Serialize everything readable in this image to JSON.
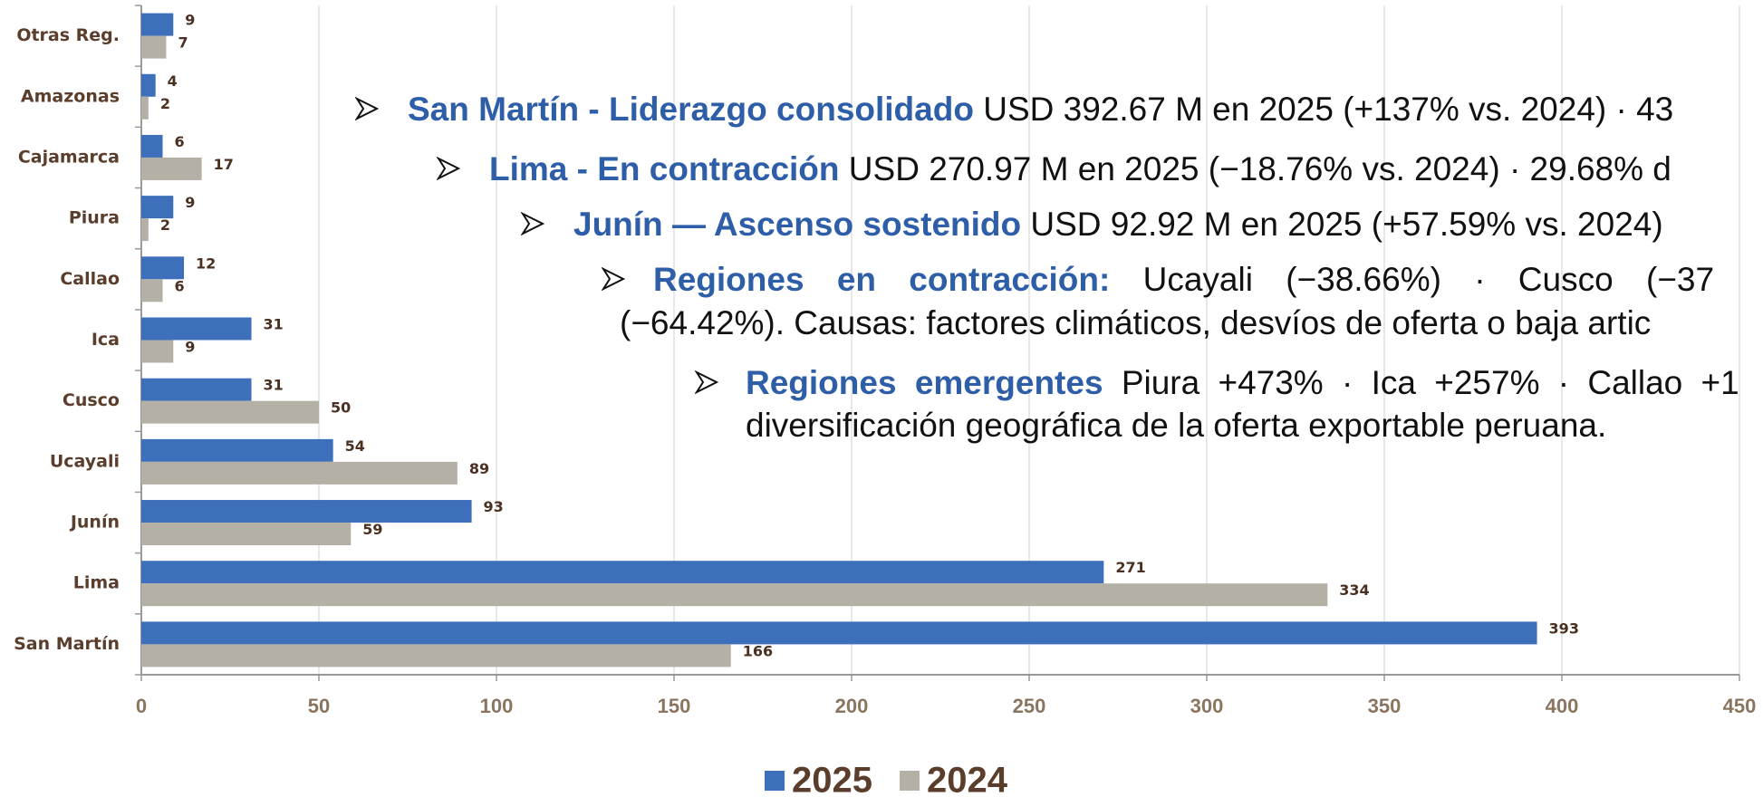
{
  "chart_data": {
    "type": "barh",
    "categories": [
      "Otras Reg.",
      "Amazonas",
      "Cajamarca",
      "Piura",
      "Callao",
      "Ica",
      "Cusco",
      "Ucayali",
      "Junín",
      "Lima",
      "San Martín"
    ],
    "series": [
      {
        "name": "2025",
        "color": "#3d6fba",
        "values": [
          9,
          4,
          6,
          9,
          12,
          31,
          31,
          54,
          93,
          271,
          393
        ]
      },
      {
        "name": "2024",
        "color": "#b5b0a6",
        "values": [
          7,
          2,
          17,
          2,
          6,
          9,
          50,
          89,
          59,
          334,
          166
        ]
      }
    ],
    "xlim": [
      0,
      450
    ],
    "xticks": [
      0,
      50,
      100,
      150,
      200,
      250,
      300,
      350,
      400,
      450
    ],
    "grid": true,
    "legend": "bottom"
  },
  "bullets": [
    {
      "heading": "San Martín - Liderazgo consolidado",
      "lines": [
        "USD 392.67 M en 2025 (+137% vs. 2024) · 43"
      ]
    },
    {
      "heading": "Lima - En contracción",
      "lines": [
        "USD 270.97 M en 2025 (−18.76% vs. 2024) · 29.68% d"
      ]
    },
    {
      "heading": "Junín — Ascenso sostenido",
      "lines": [
        "USD 92.92 M en 2025 (+57.59% vs. 2024)"
      ]
    },
    {
      "heading": "Regiones en contracción:",
      "lines": [
        "Ucayali (−38.66%) · Cusco (−37",
        "(−64.42%). Causas: factores climáticos, desvíos de oferta o baja artic"
      ]
    },
    {
      "heading": "Regiones emergentes",
      "lines": [
        "Piura +473% · Ica +257% · Callao +1",
        "diversificación geográfica de la oferta exportable peruana."
      ]
    }
  ]
}
